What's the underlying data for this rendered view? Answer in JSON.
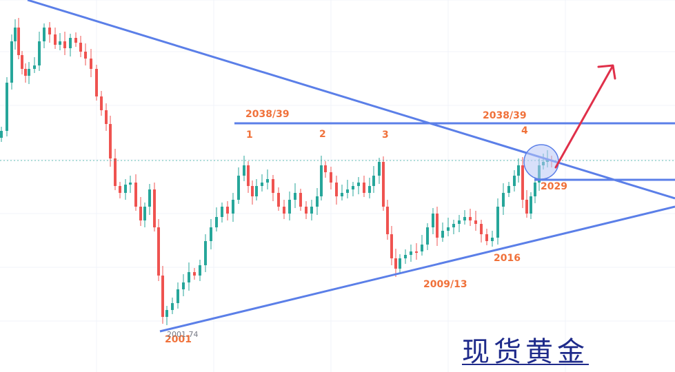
{
  "chart_data": {
    "type": "candlestick",
    "colors": {
      "up": "#26a69a",
      "down": "#ef5350",
      "trendline": "#5b7fe8",
      "annotation": "#f0713a",
      "arrow": "#e0304a",
      "current_price_line": "#26a69a",
      "circle_fill": "#b8c6f5",
      "brand": "#1e2a8a"
    },
    "annotations": {
      "resistance_left": "2038/39",
      "resistance_right": "2038/39",
      "touch_1": "1",
      "touch_2": "2",
      "touch_3": "3",
      "touch_4": "4",
      "support_right": "2029",
      "low_2016": "2016",
      "low_2009": "2009/13",
      "low_2001": "2001",
      "low_price": "2001.74"
    },
    "levels": {
      "resistance": 2038.5,
      "support": 2029,
      "current": 2033,
      "low": 2001.74
    },
    "grid": true,
    "price_range": [
      1995,
      2080
    ]
  },
  "brand_text": "现货黄金"
}
